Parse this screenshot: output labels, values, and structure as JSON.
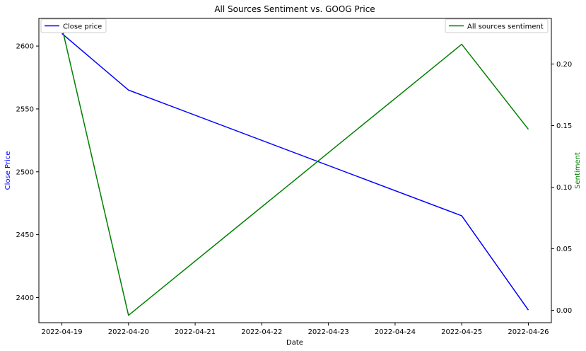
{
  "chart_data": {
    "type": "line",
    "title": "All Sources Sentiment vs. GOOG Price",
    "xlabel": "Date",
    "x_tick_labels": [
      "2022-04-19",
      "2022-04-20",
      "2022-04-21",
      "2022-04-22",
      "2022-04-23",
      "2022-04-24",
      "2022-04-25",
      "2022-04-26"
    ],
    "left_axis": {
      "label": "Close Price",
      "label_color": "#0000ff",
      "ylim": [
        2380,
        2622
      ],
      "ticks": [
        2400,
        2450,
        2500,
        2550,
        2600
      ],
      "tick_labels": [
        "2400",
        "2450",
        "2500",
        "2550",
        "2600"
      ]
    },
    "right_axis": {
      "label": "Sentiment",
      "label_color": "#008000",
      "ylim": [
        -0.01,
        0.237
      ],
      "ticks": [
        0.0,
        0.05,
        0.1,
        0.15,
        0.2
      ],
      "tick_labels": [
        "0.00",
        "0.05",
        "0.10",
        "0.15",
        "0.20"
      ]
    },
    "series": [
      {
        "name": "Close price",
        "axis": "left",
        "color": "#0000ff",
        "x": [
          "2022-04-19",
          "2022-04-20",
          "2022-04-25",
          "2022-04-26"
        ],
        "values": [
          2610,
          2565,
          2465,
          2390
        ]
      },
      {
        "name": "All sources sentiment",
        "axis": "right",
        "color": "#008000",
        "x": [
          "2022-04-19",
          "2022-04-20",
          "2022-04-25",
          "2022-04-26"
        ],
        "values": [
          0.23,
          -0.004,
          0.216,
          0.147
        ]
      }
    ],
    "legends": {
      "left": {
        "position": "upper-left",
        "label": "Close price"
      },
      "right": {
        "position": "upper-right",
        "label": "All sources sentiment"
      }
    },
    "grid": false
  }
}
